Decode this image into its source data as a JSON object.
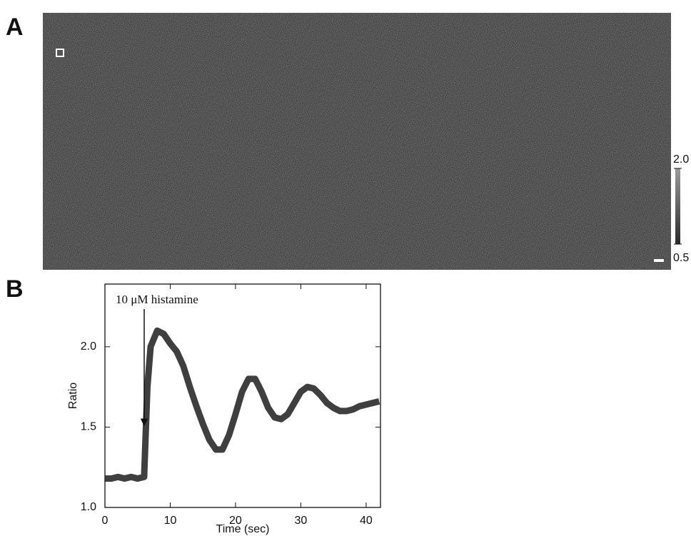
{
  "chart_data": [
    {
      "type": "image",
      "panel_label": "A",
      "colorbar": {
        "lim": [
          0.5,
          2.0
        ],
        "ticks": [
          {
            "value": 2,
            "label": "2.0"
          },
          {
            "value": 0.5,
            "label": "0.5"
          }
        ]
      }
    },
    {
      "type": "line",
      "panel_label": "B",
      "annotation": "10 μM histamine",
      "xlabel": "Time (sec)",
      "ylabel": "Ratio",
      "xlim": [
        0,
        42.2
      ],
      "ylim": [
        1.0,
        2.39
      ],
      "xticks": [
        0,
        10,
        20,
        30,
        40
      ],
      "yticks": [
        {
          "value": 1,
          "label": "1.0"
        },
        1.5,
        {
          "value": 2,
          "label": "2.0"
        }
      ],
      "color": "#2a2a2a",
      "x": [
        0,
        1,
        2,
        3,
        4,
        5,
        6,
        6.5,
        7,
        8,
        9,
        10,
        11,
        12,
        13,
        14,
        15,
        16,
        17,
        18,
        19,
        20,
        21,
        22,
        23,
        24,
        25,
        26,
        27,
        28,
        29,
        30,
        31,
        32,
        33,
        34,
        35,
        36,
        37,
        38,
        39,
        40,
        41,
        42
      ],
      "values": [
        1.18,
        1.18,
        1.19,
        1.18,
        1.19,
        1.18,
        1.19,
        1.75,
        2.0,
        2.1,
        2.08,
        2.02,
        1.97,
        1.88,
        1.75,
        1.63,
        1.52,
        1.42,
        1.36,
        1.36,
        1.45,
        1.58,
        1.72,
        1.8,
        1.8,
        1.72,
        1.62,
        1.56,
        1.55,
        1.58,
        1.65,
        1.72,
        1.75,
        1.74,
        1.7,
        1.65,
        1.62,
        1.6,
        1.6,
        1.61,
        1.63,
        1.64,
        1.65,
        1.66
      ]
    }
  ]
}
